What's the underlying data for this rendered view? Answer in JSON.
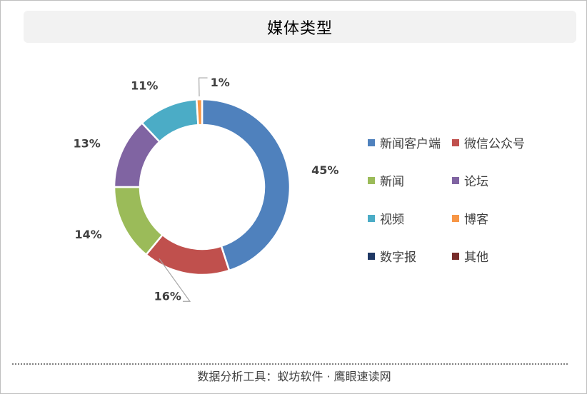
{
  "chart_data": {
    "type": "pie",
    "subtype": "donut",
    "title": "媒体类型",
    "legend_position": "right",
    "slices": [
      {
        "name": "新闻客户端",
        "value": 45,
        "label": "45%",
        "color": "#4f81bd"
      },
      {
        "name": "微信公众号",
        "value": 16,
        "label": "16%",
        "color": "#c0504d"
      },
      {
        "name": "新闻",
        "value": 14,
        "label": "14%",
        "color": "#9bbb59"
      },
      {
        "name": "论坛",
        "value": 13,
        "label": "13%",
        "color": "#8064a2"
      },
      {
        "name": "视频",
        "value": 11,
        "label": "11%",
        "color": "#4bacc6"
      },
      {
        "name": "博客",
        "value": 1,
        "label": "1%",
        "color": "#f79646"
      },
      {
        "name": "数字报",
        "value": 0,
        "label": "",
        "color": "#1f3864"
      },
      {
        "name": "其他",
        "value": 0,
        "label": "",
        "color": "#772c2a"
      }
    ]
  },
  "footer": {
    "text": "数据分析工具：蚁坊软件 · 鹰眼速读网"
  }
}
